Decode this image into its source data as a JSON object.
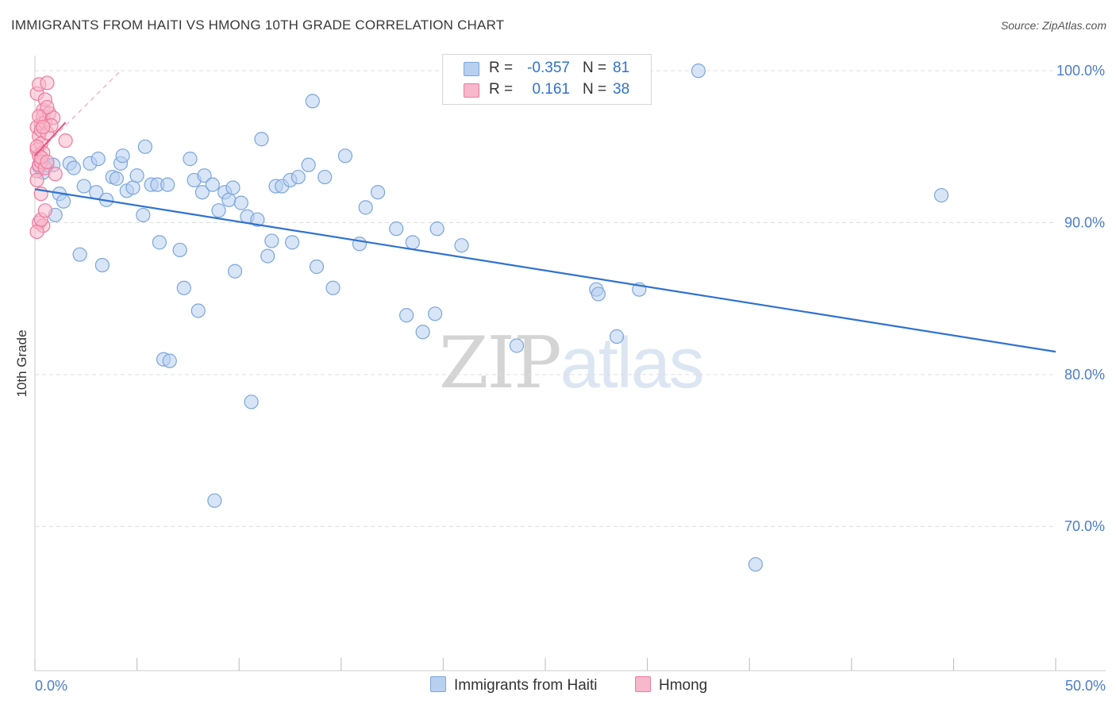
{
  "header": {
    "title": "IMMIGRANTS FROM HAITI VS HMONG 10TH GRADE CORRELATION CHART",
    "source": "Source: ZipAtlas.com"
  },
  "watermark": {
    "zip": "ZIP",
    "atlas": "atlas"
  },
  "legend": {
    "rows": [
      {
        "r_label": "R =",
        "r_value": "-0.357",
        "n_label": "N =",
        "n_value": "81"
      },
      {
        "r_label": "R =",
        "r_value": "0.161",
        "n_label": "N =",
        "n_value": "38"
      }
    ]
  },
  "bottom_legend": {
    "series1": "Immigrants from Haiti",
    "series2": "Hmong"
  },
  "colors": {
    "blue_fill": "#b8d0f0",
    "blue_stroke": "#7aa6dc",
    "blue_line": "#2f72d0",
    "pink_fill": "#f7b8cb",
    "pink_stroke": "#ee7aa0",
    "pink_line": "#e85a88",
    "axis_text": "#4a7ccc",
    "grid": "#dddddd"
  },
  "chart_data": {
    "type": "scatter",
    "title": "IMMIGRANTS FROM HAITI VS HMONG 10TH GRADE CORRELATION CHART",
    "xlabel": "",
    "ylabel": "10th Grade",
    "xlim": [
      0,
      50
    ],
    "ylim": [
      60.5,
      101
    ],
    "x_ticks_labels": {
      "left": "0.0%",
      "right": "50.0%"
    },
    "y_ticks": [
      {
        "value": 100,
        "label": "100.0%"
      },
      {
        "value": 90,
        "label": "90.0%"
      },
      {
        "value": 80,
        "label": "80.0%"
      },
      {
        "value": 70,
        "label": "70.0%"
      }
    ],
    "series": [
      {
        "name": "Immigrants from Haiti",
        "color": "#7aa6dc",
        "R": -0.357,
        "N": 81,
        "trend": {
          "x1": 0,
          "y1": 92.2,
          "x2": 50,
          "y2": 81.5
        },
        "points": [
          [
            0.4,
            93.3
          ],
          [
            0.6,
            93.8
          ],
          [
            0.9,
            93.8
          ],
          [
            1.0,
            90.5
          ],
          [
            1.2,
            91.9
          ],
          [
            1.4,
            91.4
          ],
          [
            1.7,
            93.9
          ],
          [
            1.9,
            93.6
          ],
          [
            2.2,
            87.9
          ],
          [
            2.4,
            92.4
          ],
          [
            2.7,
            93.9
          ],
          [
            3.0,
            92.0
          ],
          [
            3.1,
            94.2
          ],
          [
            3.3,
            87.2
          ],
          [
            3.5,
            91.5
          ],
          [
            3.8,
            93.0
          ],
          [
            4.0,
            92.9
          ],
          [
            4.2,
            93.9
          ],
          [
            4.3,
            94.4
          ],
          [
            4.5,
            92.1
          ],
          [
            4.8,
            92.3
          ],
          [
            5.0,
            93.1
          ],
          [
            5.3,
            90.5
          ],
          [
            5.4,
            95.0
          ],
          [
            5.7,
            92.5
          ],
          [
            6.0,
            92.5
          ],
          [
            6.1,
            88.7
          ],
          [
            6.3,
            81.0
          ],
          [
            6.5,
            92.5
          ],
          [
            6.6,
            80.9
          ],
          [
            7.1,
            88.2
          ],
          [
            7.3,
            85.7
          ],
          [
            7.6,
            94.2
          ],
          [
            7.8,
            92.8
          ],
          [
            8.0,
            84.2
          ],
          [
            8.2,
            92.0
          ],
          [
            8.3,
            93.1
          ],
          [
            8.7,
            92.5
          ],
          [
            8.8,
            71.7
          ],
          [
            9.0,
            90.8
          ],
          [
            9.3,
            92.0
          ],
          [
            9.5,
            91.5
          ],
          [
            9.7,
            92.3
          ],
          [
            9.8,
            86.8
          ],
          [
            10.1,
            91.3
          ],
          [
            10.4,
            90.4
          ],
          [
            10.6,
            78.2
          ],
          [
            10.9,
            90.2
          ],
          [
            11.1,
            95.5
          ],
          [
            11.4,
            87.8
          ],
          [
            11.6,
            88.8
          ],
          [
            11.8,
            92.4
          ],
          [
            12.1,
            92.4
          ],
          [
            12.5,
            92.8
          ],
          [
            12.6,
            88.7
          ],
          [
            12.9,
            93.0
          ],
          [
            13.4,
            93.8
          ],
          [
            13.6,
            98.0
          ],
          [
            13.8,
            87.1
          ],
          [
            14.2,
            93.0
          ],
          [
            14.6,
            85.7
          ],
          [
            15.2,
            94.4
          ],
          [
            15.9,
            88.6
          ],
          [
            16.2,
            91.0
          ],
          [
            16.8,
            92.0
          ],
          [
            17.7,
            89.6
          ],
          [
            18.2,
            83.9
          ],
          [
            18.5,
            88.7
          ],
          [
            19.0,
            82.8
          ],
          [
            19.6,
            84.0
          ],
          [
            19.7,
            89.6
          ],
          [
            20.9,
            88.5
          ],
          [
            23.6,
            81.9
          ],
          [
            27.5,
            85.6
          ],
          [
            27.6,
            85.3
          ],
          [
            28.5,
            82.5
          ],
          [
            29.6,
            85.6
          ],
          [
            32.5,
            100.0
          ],
          [
            35.3,
            67.5
          ],
          [
            44.4,
            91.8
          ],
          [
            0.2,
            93.7
          ]
        ]
      },
      {
        "name": "Hmong",
        "color": "#ee7aa0",
        "R": 0.161,
        "N": 38,
        "trend": {
          "x1": 0,
          "y1": 94.4,
          "x2": 1.5,
          "y2": 96.6
        },
        "trend_ext": {
          "x1": 0,
          "y1": 94.4,
          "x2": 4.2,
          "y2": 100.0
        },
        "points": [
          [
            0.1,
            98.5
          ],
          [
            0.2,
            99.1
          ],
          [
            0.3,
            96.5
          ],
          [
            0.4,
            97.4
          ],
          [
            0.5,
            98.1
          ],
          [
            0.6,
            99.2
          ],
          [
            0.1,
            96.3
          ],
          [
            0.2,
            95.7
          ],
          [
            0.3,
            96.1
          ],
          [
            0.4,
            97.0
          ],
          [
            0.5,
            96.6
          ],
          [
            0.7,
            97.2
          ],
          [
            0.1,
            94.8
          ],
          [
            0.2,
            94.4
          ],
          [
            0.3,
            95.2
          ],
          [
            0.4,
            94.6
          ],
          [
            0.6,
            95.9
          ],
          [
            0.9,
            96.9
          ],
          [
            0.1,
            93.4
          ],
          [
            0.2,
            93.8
          ],
          [
            0.3,
            94.0
          ],
          [
            0.5,
            93.6
          ],
          [
            1.0,
            93.2
          ],
          [
            1.5,
            95.4
          ],
          [
            0.1,
            92.8
          ],
          [
            0.3,
            91.9
          ],
          [
            0.2,
            90.0
          ],
          [
            0.4,
            89.8
          ],
          [
            0.1,
            89.4
          ],
          [
            0.3,
            90.2
          ],
          [
            0.5,
            90.8
          ],
          [
            0.8,
            96.4
          ],
          [
            0.6,
            97.6
          ],
          [
            0.2,
            97.0
          ],
          [
            0.4,
            96.3
          ],
          [
            0.1,
            95.0
          ],
          [
            0.3,
            94.3
          ],
          [
            0.6,
            94.0
          ]
        ]
      }
    ]
  }
}
